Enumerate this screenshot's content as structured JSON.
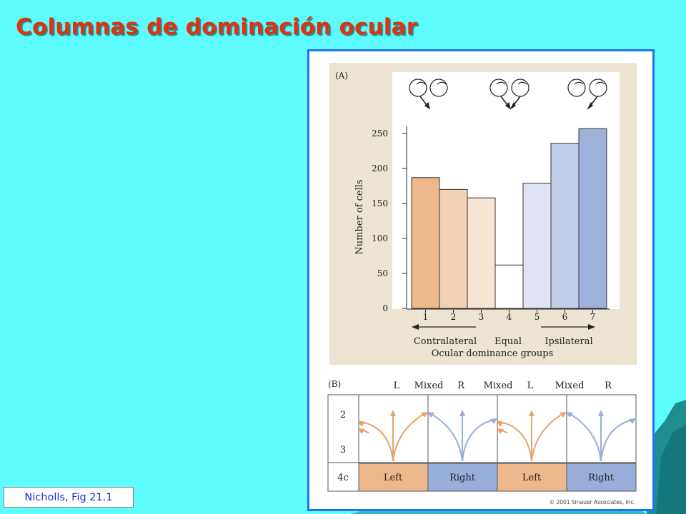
{
  "slide": {
    "title": "Columnas de dominación ocular",
    "citation": "Nicholls, Fig 21.1"
  },
  "colors": {
    "background": "#5ffcff",
    "title": "#e2320a",
    "figure_border": "#1f72f4",
    "panel_bg": "#ede3d3",
    "left_eye": "#e8a36c",
    "right_eye": "#98aedb"
  },
  "chart_data": [
    {
      "type": "bar",
      "panel_label": "(A)",
      "categories": [
        "1",
        "2",
        "3",
        "4",
        "5",
        "6",
        "7"
      ],
      "values": [
        187,
        170,
        158,
        62,
        179,
        236,
        257
      ],
      "bar_colors": [
        "#edb88b",
        "#f2d2b4",
        "#f6e5d4",
        "#ffffff",
        "#e1e5f3",
        "#c2cde8",
        "#9fb0db"
      ],
      "ylabel": "Number of cells",
      "xlabel": "Ocular dominance groups",
      "yticks": [
        0,
        50,
        100,
        150,
        200,
        250
      ],
      "ylim": [
        0,
        290
      ],
      "group_labels": [
        "Contralateral",
        "Equal",
        "Ipsilateral"
      ],
      "grid": false
    }
  ],
  "panel_b": {
    "label": "(B)",
    "column_labels": [
      "L",
      "Mixed",
      "R",
      "Mixed",
      "L",
      "Mixed",
      "R"
    ],
    "row_labels": [
      "2",
      "3",
      "4c"
    ],
    "layer4c_cells": [
      "Left",
      "Right",
      "Left",
      "Right"
    ]
  },
  "copyright": "© 2001 Sinauer Associates, Inc."
}
